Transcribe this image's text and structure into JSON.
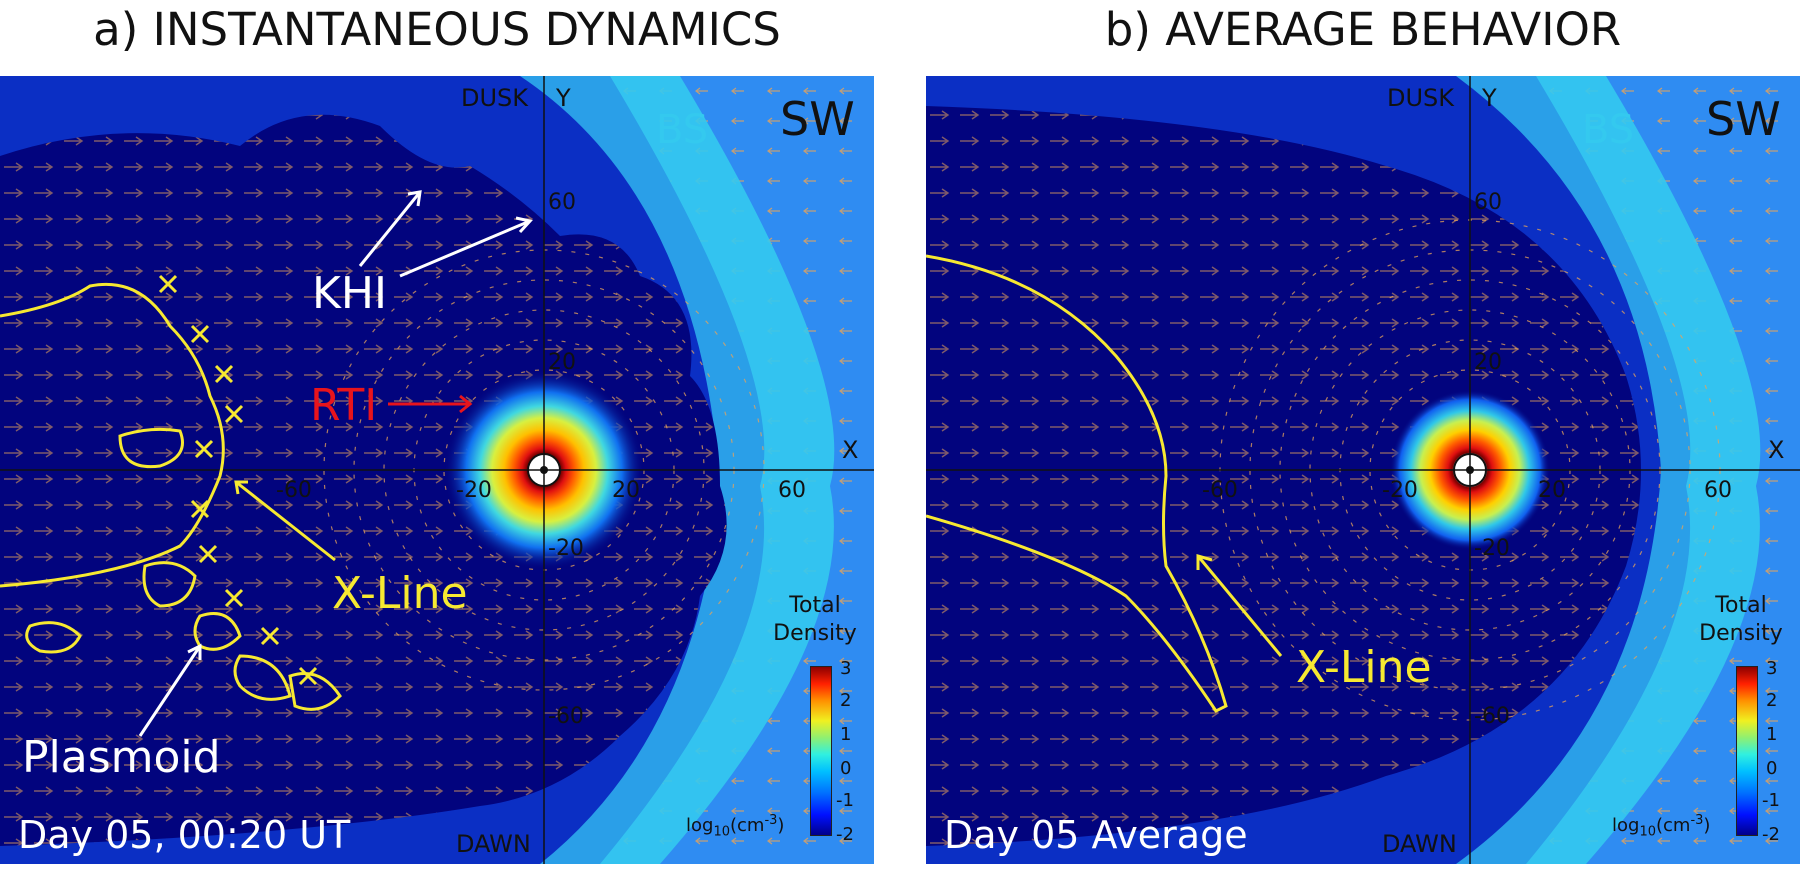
{
  "colors": {
    "solar_wind": "#2f8cf2",
    "magnetosphere": "#02047e",
    "bow_shock": "#34c9ef",
    "arrows": "#e6a35a",
    "xline": "#f7e931",
    "annotation_white": "#ffffff",
    "annotation_red": "#e8141c"
  },
  "panels": [
    {
      "title": "a) INSTANTANEOUS DYNAMICS",
      "dusk": "DUSK",
      "dawn": "DAWN",
      "axis_y": "Y",
      "axis_x": "X",
      "bow_shock": "BS",
      "solar_wind": "SW",
      "x_ticks": [
        "-60",
        "-20",
        "20",
        "60"
      ],
      "y_ticks": [
        "60",
        "20",
        "-20",
        "-60"
      ],
      "annotations": {
        "khi": "KHI",
        "rti": "RTI",
        "xline": "X-Line",
        "plasmoid": "Plasmoid"
      },
      "time_label": "Day 05, 00:20 UT",
      "colorbar": {
        "title_line1": "Total",
        "title_line2": "Density",
        "ticks": [
          "3",
          "2",
          "1",
          "0",
          "-1",
          "-2"
        ],
        "unit_base": "log",
        "unit_sub": "10",
        "unit_open": "(cm",
        "unit_sup": "-3",
        "unit_close": ")"
      }
    },
    {
      "title": "b) AVERAGE BEHAVIOR",
      "dusk": "DUSK",
      "dawn": "DAWN",
      "axis_y": "Y",
      "axis_x": "X",
      "bow_shock": "BS",
      "solar_wind": "SW",
      "x_ticks": [
        "-60",
        "-20",
        "20",
        "60"
      ],
      "y_ticks": [
        "60",
        "20",
        "-20",
        "-60"
      ],
      "annotations": {
        "xline": "X-Line"
      },
      "time_label": "Day 05 Average",
      "colorbar": {
        "title_line1": "Total",
        "title_line2": "Density",
        "ticks": [
          "3",
          "2",
          "1",
          "0",
          "-1",
          "-2"
        ],
        "unit_base": "log",
        "unit_sub": "10",
        "unit_open": "(cm",
        "unit_sup": "-3",
        "unit_close": ")"
      }
    }
  ]
}
